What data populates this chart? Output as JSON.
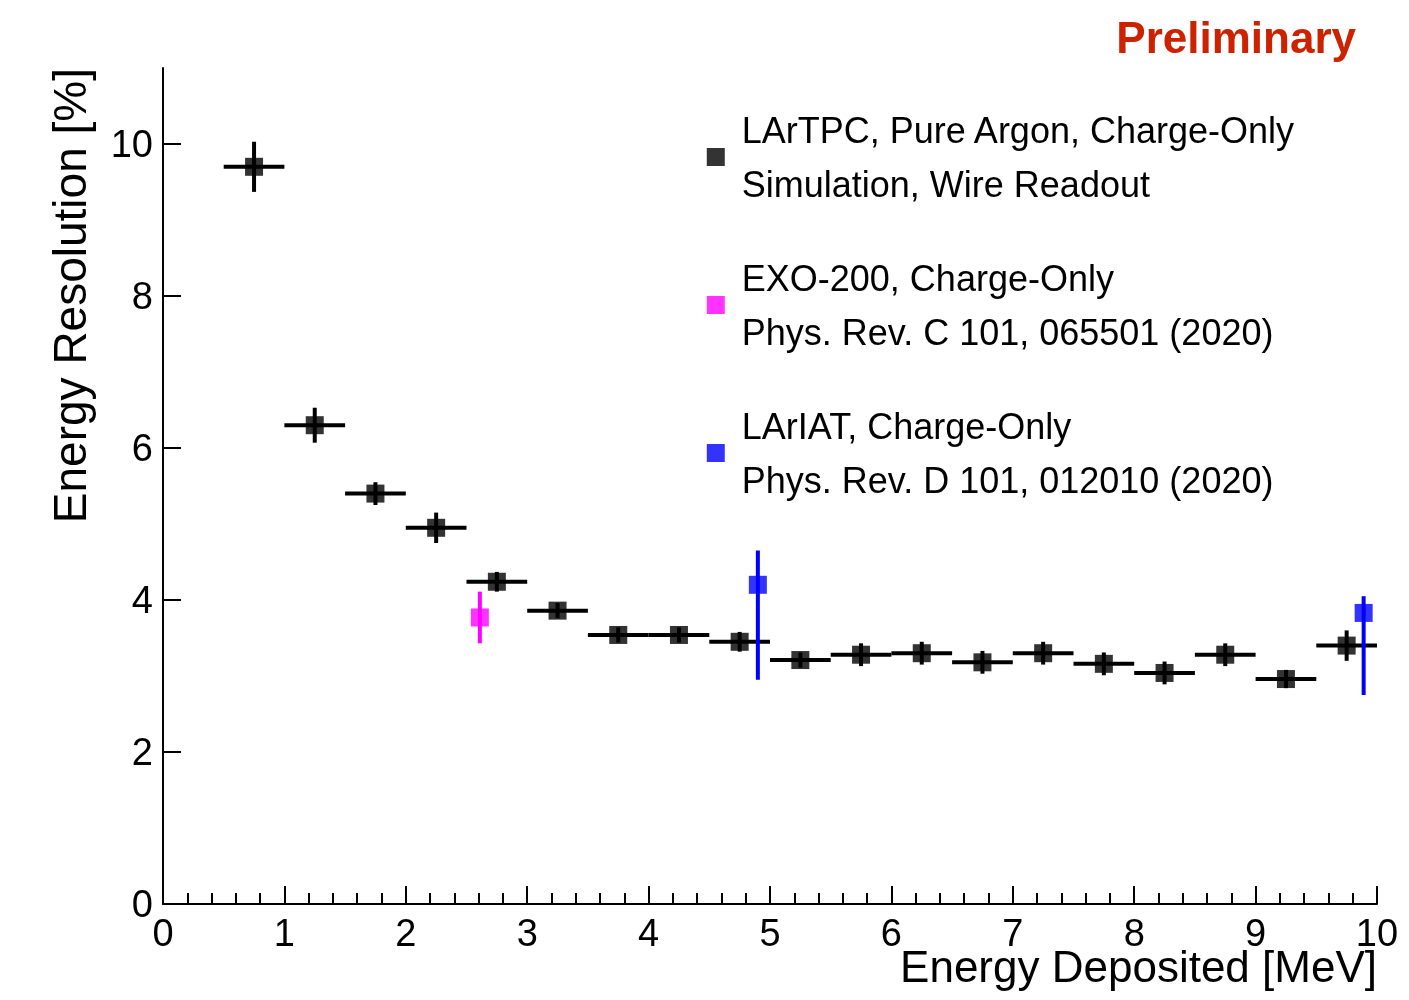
{
  "chart_data": {
    "type": "scatter",
    "title": "Preliminary",
    "xlabel": "Energy Deposited [MeV]",
    "ylabel": "Energy Resolution [%]",
    "xlim": [
      0,
      10
    ],
    "xticks": [
      0,
      1,
      2,
      3,
      4,
      5,
      6,
      7,
      8,
      9,
      10
    ],
    "ylim": [
      0,
      11
    ],
    "yticks": [
      0,
      2,
      4,
      6,
      8,
      10
    ],
    "grid": false,
    "legend": "top right",
    "marker": "square",
    "series": [
      {
        "name": "LArTPC, Pure Argon, Charge-Only\nSimulation, Wire Readout",
        "color": "#000000",
        "x": [
          0.75,
          1.25,
          1.75,
          2.25,
          2.75,
          3.25,
          3.75,
          4.25,
          4.75,
          5.25,
          5.75,
          6.25,
          6.75,
          7.25,
          7.75,
          8.25,
          8.75,
          9.25,
          9.75
        ],
        "values": [
          9.7,
          6.3,
          5.4,
          4.95,
          4.24,
          3.86,
          3.54,
          3.54,
          3.45,
          3.21,
          3.28,
          3.3,
          3.18,
          3.3,
          3.16,
          3.04,
          3.28,
          2.96,
          3.4
        ],
        "errors": [
          0.33,
          0.23,
          0.15,
          0.2,
          0.13,
          0.1,
          0.1,
          0.1,
          0.13,
          0.1,
          0.15,
          0.15,
          0.15,
          0.15,
          0.15,
          0.15,
          0.15,
          0.12,
          0.2
        ],
        "xerrors": [
          0.25,
          0.25,
          0.25,
          0.25,
          0.25,
          0.25,
          0.25,
          0.25,
          0.25,
          0.25,
          0.25,
          0.25,
          0.25,
          0.25,
          0.25,
          0.25,
          0.25,
          0.25,
          0.25
        ]
      },
      {
        "name": "EXO-200, Charge-Only\nPhys. Rev. C 101, 065501 (2020)",
        "color": "#ff00ff",
        "x": [
          2.61
        ],
        "values": [
          3.77
        ],
        "errors": [
          0.34
        ]
      },
      {
        "name": "LArIAT, Charge-Only\nPhys. Rev. D 101, 012010 (2020)",
        "color": "#0000ff",
        "x": [
          4.9,
          9.89
        ],
        "values": [
          4.2,
          3.83
        ],
        "errors": [
          [
            2.95,
            4.65
          ],
          [
            2.75,
            4.05
          ]
        ]
      }
    ]
  }
}
